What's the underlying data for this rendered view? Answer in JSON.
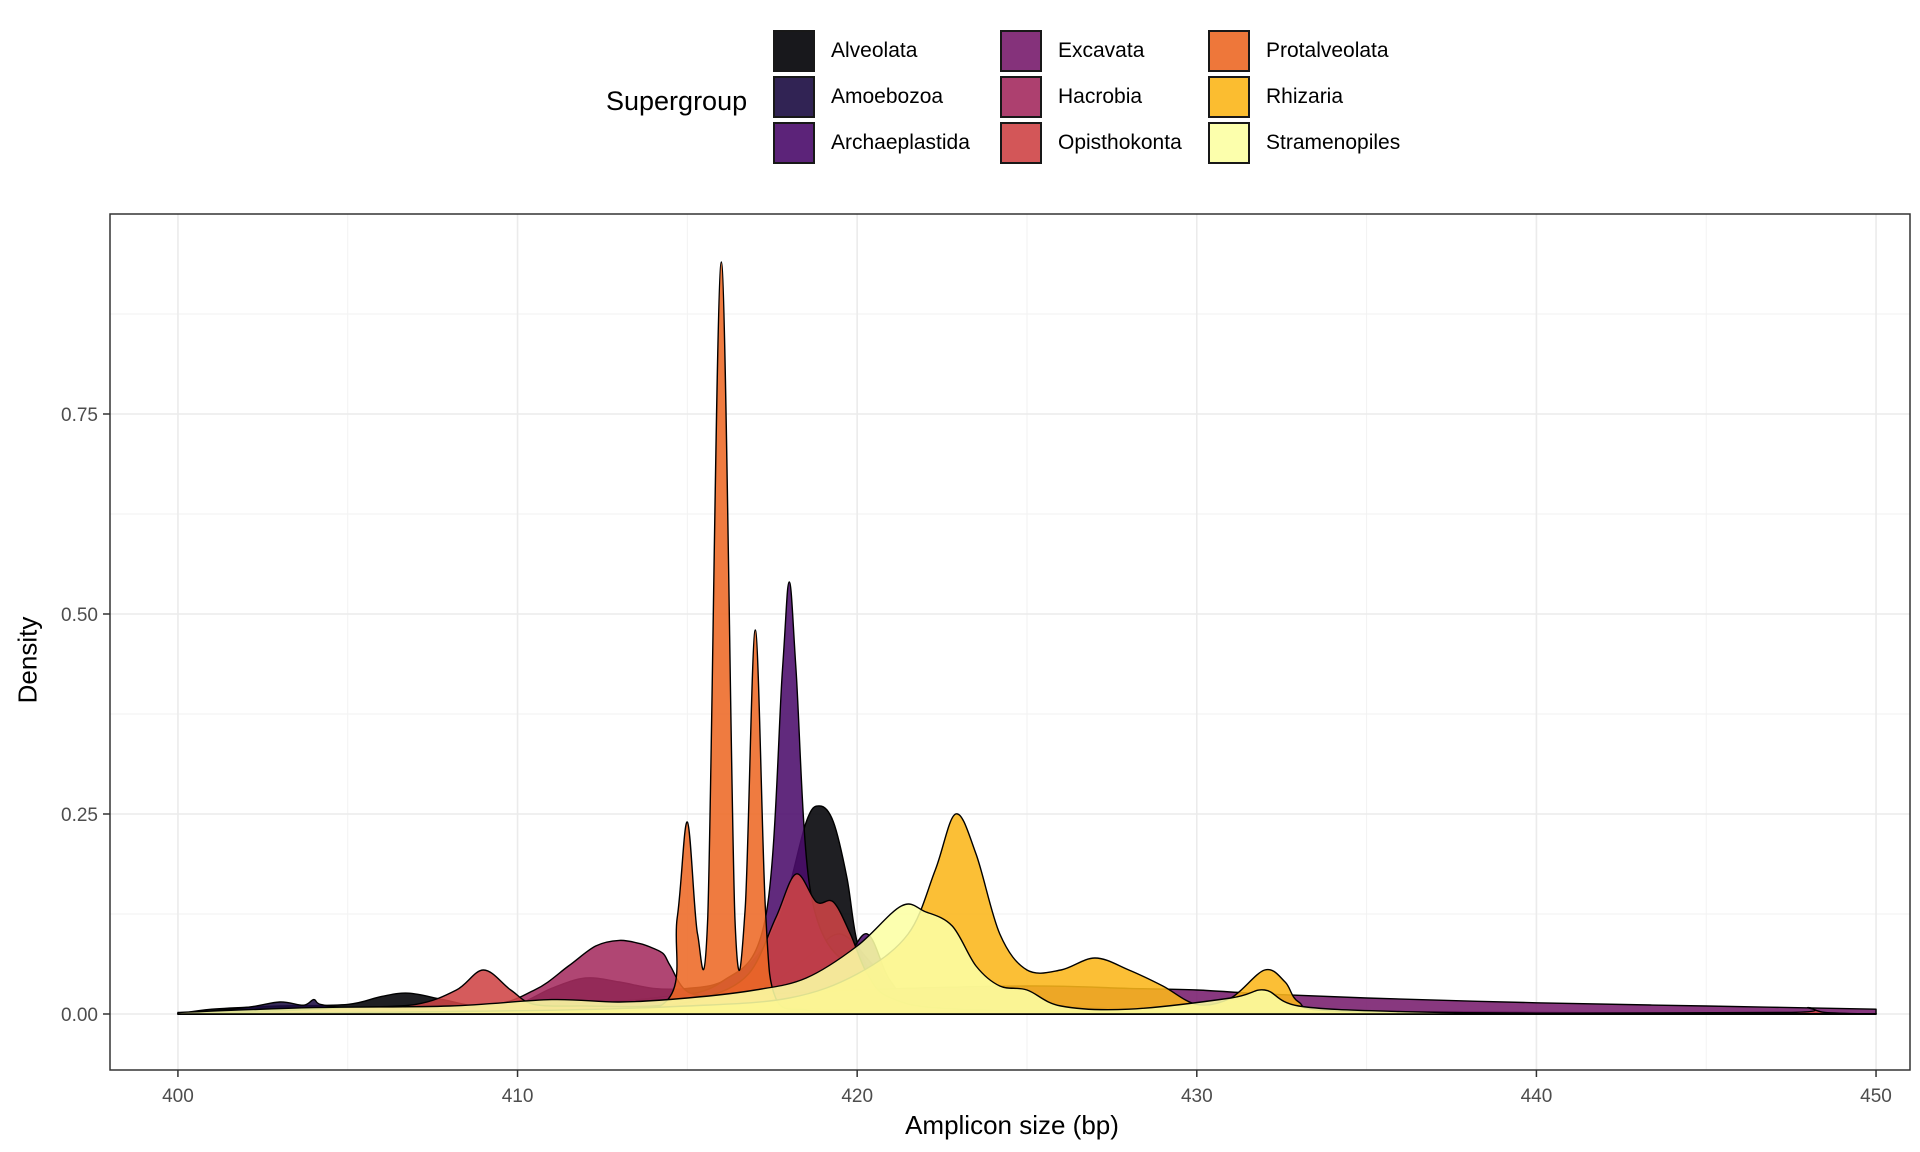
{
  "chart_data": {
    "type": "area",
    "title": "",
    "xlabel": "Amplicon size (bp)",
    "ylabel": "Density",
    "xlim": [
      398,
      451
    ],
    "ylim": [
      -0.07,
      1.0
    ],
    "x_ticks": [
      400,
      410,
      420,
      430,
      440,
      450
    ],
    "x_tick_labels": [
      "400",
      "410",
      "420",
      "430",
      "440",
      "450"
    ],
    "y_ticks": [
      0,
      0.25,
      0.5,
      0.75
    ],
    "y_tick_labels": [
      "0.00",
      "0.25",
      "0.50",
      "0.75"
    ],
    "grid": true,
    "legend": {
      "title": "Supergroup",
      "placement": "top",
      "columns": 3
    },
    "series": [
      {
        "name": "Alveolata",
        "color": "#000004",
        "points": [
          [
            400,
            0.0
          ],
          [
            401,
            0.006
          ],
          [
            403,
            0.01
          ],
          [
            405,
            0.012
          ],
          [
            406,
            0.022
          ],
          [
            406.8,
            0.026
          ],
          [
            407.8,
            0.018
          ],
          [
            409,
            0.008
          ],
          [
            410,
            0.012
          ],
          [
            411,
            0.032
          ],
          [
            412,
            0.045
          ],
          [
            413,
            0.04
          ],
          [
            414,
            0.032
          ],
          [
            415,
            0.032
          ],
          [
            416,
            0.04
          ],
          [
            417,
            0.07
          ],
          [
            417.8,
            0.13
          ],
          [
            418.5,
            0.24
          ],
          [
            418.9,
            0.26
          ],
          [
            419.3,
            0.24
          ],
          [
            419.7,
            0.17
          ],
          [
            420,
            0.09
          ],
          [
            420.5,
            0.045
          ],
          [
            421,
            0.03
          ],
          [
            423,
            0.02
          ],
          [
            426,
            0.01
          ],
          [
            430,
            0.005
          ],
          [
            440,
            0.002
          ],
          [
            450,
            0.0
          ]
        ]
      },
      {
        "name": "Amoebozoa",
        "color": "#1B0C42",
        "points": [
          [
            400,
            0.0
          ],
          [
            402,
            0.008
          ],
          [
            403,
            0.015
          ],
          [
            403.7,
            0.011
          ],
          [
            404,
            0.018
          ],
          [
            404.2,
            0.012
          ],
          [
            405,
            0.008
          ],
          [
            407,
            0.006
          ],
          [
            410,
            0.006
          ],
          [
            414,
            0.01
          ],
          [
            417,
            0.03
          ],
          [
            418.5,
            0.07
          ],
          [
            419.5,
            0.1
          ],
          [
            420.5,
            0.06
          ],
          [
            421.5,
            0.02
          ],
          [
            423,
            0.005
          ],
          [
            426,
            0.002
          ],
          [
            430,
            0.0
          ]
        ]
      },
      {
        "name": "Archaeplastida",
        "color": "#4B0C6B",
        "points": [
          [
            400,
            0.0
          ],
          [
            404,
            0.004
          ],
          [
            410,
            0.01
          ],
          [
            414,
            0.02
          ],
          [
            416,
            0.04
          ],
          [
            417.3,
            0.12
          ],
          [
            417.8,
            0.43
          ],
          [
            418,
            0.54
          ],
          [
            418.2,
            0.43
          ],
          [
            418.6,
            0.16
          ],
          [
            419.5,
            0.07
          ],
          [
            420.3,
            0.1
          ],
          [
            421,
            0.04
          ],
          [
            422,
            0.01
          ],
          [
            426,
            0.002
          ],
          [
            430,
            0.0
          ]
        ]
      },
      {
        "name": "Excavata",
        "color": "#781C6D",
        "points": [
          [
            400,
            0.0
          ],
          [
            405,
            0.004
          ],
          [
            410,
            0.01
          ],
          [
            415,
            0.02
          ],
          [
            420,
            0.03
          ],
          [
            425,
            0.035
          ],
          [
            428,
            0.032
          ],
          [
            430,
            0.03
          ],
          [
            432,
            0.025
          ],
          [
            435,
            0.02
          ],
          [
            440,
            0.014
          ],
          [
            445,
            0.01
          ],
          [
            450,
            0.006
          ]
        ]
      },
      {
        "name": "Hacrobia",
        "color": "#A52C60",
        "points": [
          [
            400,
            0.0
          ],
          [
            405,
            0.004
          ],
          [
            409,
            0.01
          ],
          [
            410.5,
            0.03
          ],
          [
            411.5,
            0.06
          ],
          [
            412.3,
            0.085
          ],
          [
            413,
            0.092
          ],
          [
            413.6,
            0.088
          ],
          [
            414,
            0.082
          ],
          [
            414.3,
            0.075
          ],
          [
            414.5,
            0.06
          ],
          [
            415,
            0.028
          ],
          [
            416,
            0.02
          ],
          [
            417,
            0.012
          ],
          [
            419,
            0.006
          ],
          [
            422,
            0.003
          ],
          [
            425,
            0.0
          ]
        ]
      },
      {
        "name": "Opisthokonta",
        "color": "#CF4446",
        "points": [
          [
            400,
            0.0
          ],
          [
            403,
            0.004
          ],
          [
            405,
            0.008
          ],
          [
            407,
            0.012
          ],
          [
            408.2,
            0.03
          ],
          [
            409,
            0.055
          ],
          [
            409.8,
            0.03
          ],
          [
            410.5,
            0.012
          ],
          [
            412,
            0.01
          ],
          [
            414,
            0.01
          ],
          [
            415.5,
            0.02
          ],
          [
            416.8,
            0.05
          ],
          [
            417.6,
            0.12
          ],
          [
            418.2,
            0.175
          ],
          [
            418.8,
            0.14
          ],
          [
            419.3,
            0.14
          ],
          [
            419.8,
            0.1
          ],
          [
            420.3,
            0.05
          ],
          [
            421,
            0.02
          ],
          [
            423,
            0.006
          ],
          [
            430,
            0.002
          ],
          [
            440,
            0.001
          ],
          [
            447.5,
            0.002
          ],
          [
            448,
            0.008
          ],
          [
            448.5,
            0.002
          ],
          [
            450,
            0.0
          ]
        ]
      },
      {
        "name": "Protalveolata",
        "color": "#ED6925",
        "points": [
          [
            400,
            0.0
          ],
          [
            410,
            0.004
          ],
          [
            414.2,
            0.01
          ],
          [
            414.7,
            0.12
          ],
          [
            415,
            0.24
          ],
          [
            415.3,
            0.1
          ],
          [
            415.6,
            0.12
          ],
          [
            416,
            0.94
          ],
          [
            416.4,
            0.12
          ],
          [
            416.7,
            0.13
          ],
          [
            417,
            0.48
          ],
          [
            417.3,
            0.13
          ],
          [
            417.6,
            0.02
          ],
          [
            418.5,
            0.005
          ],
          [
            420,
            0.0
          ]
        ]
      },
      {
        "name": "Rhizaria",
        "color": "#FBB61A",
        "points": [
          [
            400,
            0.0
          ],
          [
            410,
            0.004
          ],
          [
            415,
            0.01
          ],
          [
            418,
            0.02
          ],
          [
            420,
            0.05
          ],
          [
            421.5,
            0.1
          ],
          [
            422.3,
            0.18
          ],
          [
            422.9,
            0.25
          ],
          [
            423.5,
            0.2
          ],
          [
            424.2,
            0.1
          ],
          [
            425,
            0.055
          ],
          [
            426,
            0.055
          ],
          [
            427,
            0.07
          ],
          [
            428,
            0.055
          ],
          [
            429,
            0.035
          ],
          [
            430,
            0.012
          ],
          [
            431,
            0.02
          ],
          [
            432,
            0.055
          ],
          [
            432.6,
            0.04
          ],
          [
            433,
            0.015
          ],
          [
            434,
            0.004
          ],
          [
            440,
            0.001
          ],
          [
            450,
            0.0
          ]
        ]
      },
      {
        "name": "Stramenopiles",
        "color": "#FCFFA4",
        "points": [
          [
            400,
            0.002
          ],
          [
            404,
            0.008
          ],
          [
            408,
            0.01
          ],
          [
            411,
            0.018
          ],
          [
            413,
            0.015
          ],
          [
            415,
            0.02
          ],
          [
            417,
            0.03
          ],
          [
            418.5,
            0.045
          ],
          [
            420,
            0.085
          ],
          [
            421.3,
            0.135
          ],
          [
            422,
            0.128
          ],
          [
            422.8,
            0.11
          ],
          [
            423.5,
            0.06
          ],
          [
            424.2,
            0.035
          ],
          [
            425,
            0.03
          ],
          [
            426,
            0.01
          ],
          [
            428,
            0.006
          ],
          [
            431,
            0.02
          ],
          [
            432,
            0.03
          ],
          [
            433,
            0.01
          ],
          [
            436,
            0.003
          ],
          [
            440,
            0.001
          ],
          [
            450,
            0.0
          ]
        ]
      }
    ]
  }
}
